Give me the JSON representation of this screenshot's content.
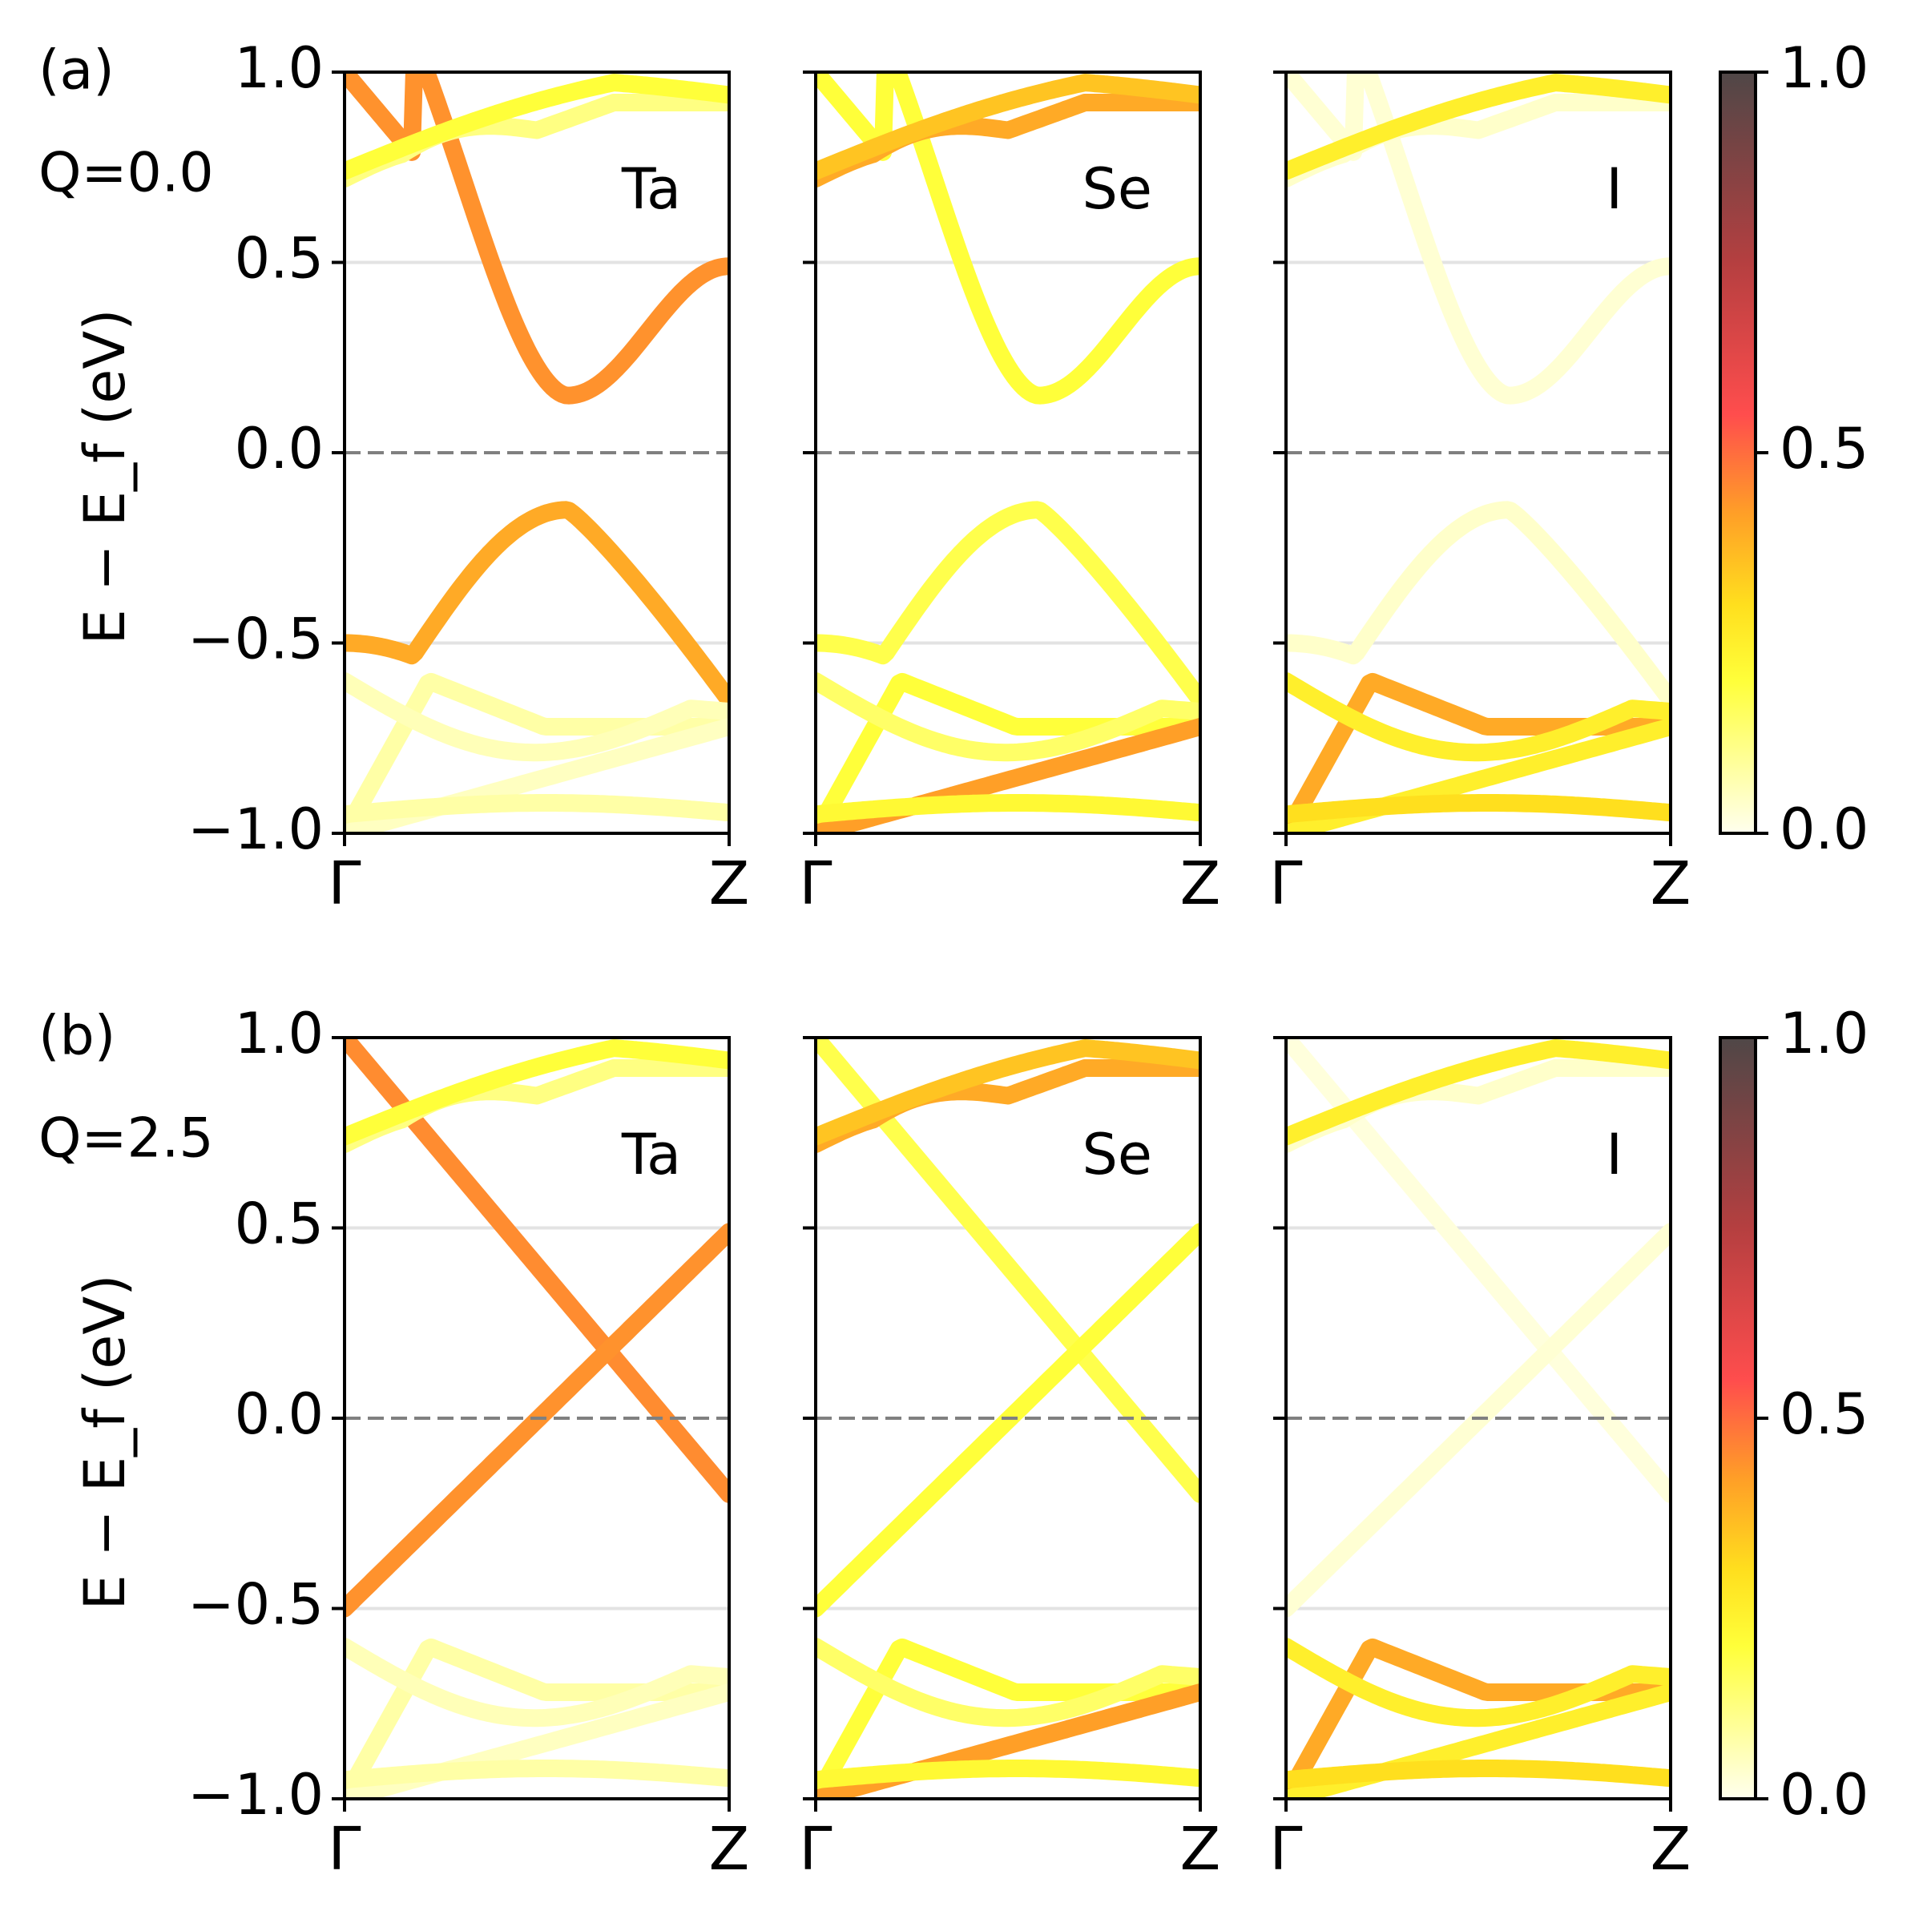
{
  "chart_data": {
    "type": "line",
    "kind": "projected band structure (orbital weight colored)",
    "ylabel": "E − E_f (eV)",
    "ylim": [
      -1.0,
      1.0
    ],
    "yticks": [
      "−1.0",
      "−0.5",
      "0.0",
      "0.5",
      "1.0"
    ],
    "yticks_values": [
      -1.0,
      -0.5,
      0.0,
      0.5,
      1.0
    ],
    "x_kpoints": [
      "Γ",
      "Z"
    ],
    "xlim": [
      0,
      1
    ],
    "fermi_level": 0.0,
    "colorbar": {
      "ticks": [
        "0.0",
        "0.5",
        "1.0"
      ],
      "range": [
        0.0,
        1.0
      ],
      "stops": [
        {
          "v": 0.0,
          "color": "#ffffee"
        },
        {
          "v": 0.2,
          "color": "#ffff3a"
        },
        {
          "v": 0.3,
          "color": "#ffdf1e"
        },
        {
          "v": 0.42,
          "color": "#ff9f27"
        },
        {
          "v": 0.55,
          "color": "#ff4d4d"
        },
        {
          "v": 0.75,
          "color": "#b53f40"
        },
        {
          "v": 1.0,
          "color": "#4f4747"
        }
      ]
    },
    "rows": [
      {
        "tag": "(a)",
        "q_label": "Q=0.0",
        "Q": 0.0,
        "panels": [
          {
            "element": "Ta",
            "w": {
              "cross": 0.45,
              "gap_c": 0.44,
              "gap_v": 0.4,
              "flat_c": 0.12,
              "flat_v": 0.2,
              "v2": 0.08,
              "v3": 0.06,
              "v4": 0.05,
              "v5": 0.08
            }
          },
          {
            "element": "Se",
            "w": {
              "cross": 0.18,
              "gap_c": 0.2,
              "gap_v": 0.18,
              "flat_c": 0.4,
              "flat_v": 0.35,
              "v2": 0.2,
              "v3": 0.15,
              "v4": 0.42,
              "v5": 0.22
            }
          },
          {
            "element": "I",
            "w": {
              "cross": 0.02,
              "gap_c": 0.03,
              "gap_v": 0.04,
              "flat_c": 0.04,
              "flat_v": 0.25,
              "v2": 0.4,
              "v3": 0.25,
              "v4": 0.25,
              "v5": 0.3
            }
          }
        ]
      },
      {
        "tag": "(b)",
        "q_label": "Q=2.5",
        "Q": 2.5,
        "panels": [
          {
            "element": "Ta",
            "w": {
              "cross": 0.45,
              "gap_c": 0.44,
              "gap_v": 0.4,
              "flat_c": 0.12,
              "flat_v": 0.2,
              "v2": 0.08,
              "v3": 0.06,
              "v4": 0.05,
              "v5": 0.08
            }
          },
          {
            "element": "Se",
            "w": {
              "cross": 0.18,
              "gap_c": 0.2,
              "gap_v": 0.18,
              "flat_c": 0.4,
              "flat_v": 0.35,
              "v2": 0.2,
              "v3": 0.15,
              "v4": 0.42,
              "v5": 0.22
            }
          },
          {
            "element": "I",
            "w": {
              "cross": 0.02,
              "gap_c": 0.03,
              "gap_v": 0.04,
              "flat_c": 0.04,
              "flat_v": 0.25,
              "v2": 0.4,
              "v3": 0.25,
              "v4": 0.25,
              "v5": 0.3
            }
          }
        ]
      }
    ]
  }
}
